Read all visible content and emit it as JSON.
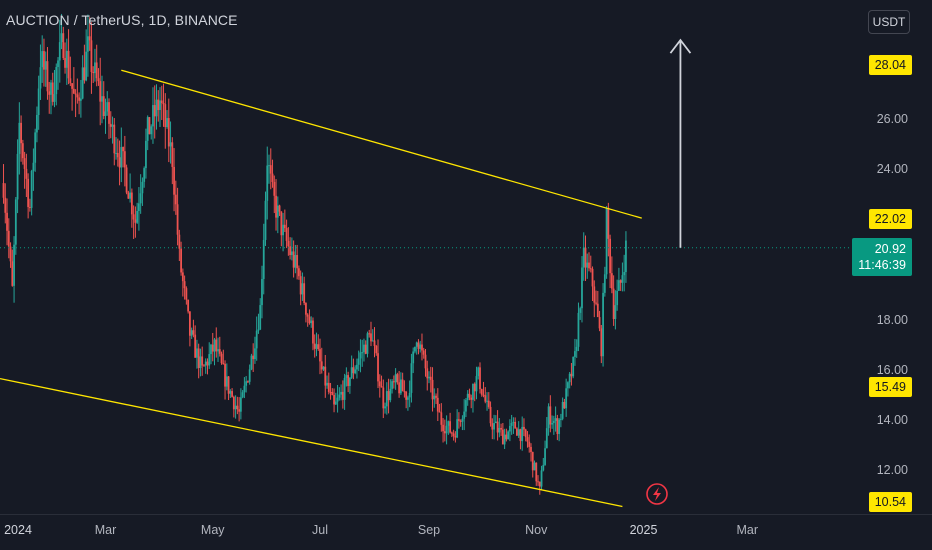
{
  "header": {
    "title": "AUCTION / TetherUS, 1D, BINANCE",
    "quote_currency": "USDT"
  },
  "price_labels": {
    "resistance_top": "28.04",
    "resistance_line": "22.02",
    "last_price": "20.92",
    "countdown": "11:46:39",
    "support_mid": "15.49",
    "support_low": "10.54"
  },
  "colors": {
    "background": "#161a25",
    "up": "#26a69a",
    "down": "#ef5350",
    "trendline": "#ffe600",
    "arrow": "#d1d4dc",
    "lightning": "#f23645",
    "last_price_bg": "#089981"
  },
  "icons": {
    "event": "lightning-icon",
    "target": "up-arrow-icon"
  },
  "chart_data": {
    "type": "candlestick",
    "title": "AUCTION / TetherUS, 1D, BINANCE",
    "y_axis": {
      "label": "USDT",
      "ticks": [
        12.0,
        14.0,
        16.0,
        18.0,
        20.0,
        22.0,
        24.0,
        26.0,
        28.0
      ],
      "tick_labels": [
        "12.00",
        "14.00",
        "16.00",
        "18.00",
        "20.00",
        "22.00",
        "24.00",
        "26.00",
        "28.00"
      ],
      "range": [
        10.3,
        30.8
      ]
    },
    "x_axis": {
      "tick_labels": [
        "2024",
        "Mar",
        "May",
        "Jul",
        "Sep",
        "Nov",
        "2025",
        "Mar"
      ],
      "range": [
        "2024-01-01",
        "2025-03-31"
      ]
    },
    "trendlines": [
      {
        "name": "upper resistance",
        "points": [
          {
            "date": "2024-03-10",
            "price": 28.0
          },
          {
            "date": "2024-12-31",
            "price": 22.1
          }
        ]
      },
      {
        "name": "lower support",
        "points": [
          {
            "date": "2024-01-01",
            "price": 15.7
          },
          {
            "date": "2024-12-20",
            "price": 10.6
          }
        ]
      }
    ],
    "key_levels": [
      28.04,
      22.02,
      20.92,
      15.49,
      10.54
    ],
    "last_price": 20.92,
    "projection": {
      "type": "arrow-up",
      "date": "2025-01-22",
      "from": 20.92,
      "to": 29.2
    },
    "series": [
      {
        "name": "AUCTION/USDT",
        "close_path": [
          {
            "date": "2024-01-03",
            "value": 23.5
          },
          {
            "date": "2024-01-08",
            "value": 19.2
          },
          {
            "date": "2024-01-12",
            "value": 25.8
          },
          {
            "date": "2024-01-18",
            "value": 22.5
          },
          {
            "date": "2024-01-24",
            "value": 28.5
          },
          {
            "date": "2024-01-30",
            "value": 27.0
          },
          {
            "date": "2024-02-06",
            "value": 29.2
          },
          {
            "date": "2024-02-13",
            "value": 26.5
          },
          {
            "date": "2024-02-20",
            "value": 28.8
          },
          {
            "date": "2024-02-27",
            "value": 27.0
          },
          {
            "date": "2024-03-05",
            "value": 25.5
          },
          {
            "date": "2024-03-12",
            "value": 24.0
          },
          {
            "date": "2024-03-18",
            "value": 22.0
          },
          {
            "date": "2024-03-25",
            "value": 25.5
          },
          {
            "date": "2024-04-01",
            "value": 26.8
          },
          {
            "date": "2024-04-08",
            "value": 24.5
          },
          {
            "date": "2024-04-12",
            "value": 20.5
          },
          {
            "date": "2024-04-18",
            "value": 17.5
          },
          {
            "date": "2024-04-25",
            "value": 16.0
          },
          {
            "date": "2024-05-02",
            "value": 17.0
          },
          {
            "date": "2024-05-09",
            "value": 15.5
          },
          {
            "date": "2024-05-16",
            "value": 14.3
          },
          {
            "date": "2024-05-23",
            "value": 16.5
          },
          {
            "date": "2024-05-28",
            "value": 18.5
          },
          {
            "date": "2024-06-01",
            "value": 24.5
          },
          {
            "date": "2024-06-04",
            "value": 23.0
          },
          {
            "date": "2024-06-10",
            "value": 21.5
          },
          {
            "date": "2024-06-18",
            "value": 20.0
          },
          {
            "date": "2024-06-25",
            "value": 18.0
          },
          {
            "date": "2024-07-02",
            "value": 16.0
          },
          {
            "date": "2024-07-09",
            "value": 14.5
          },
          {
            "date": "2024-07-16",
            "value": 15.5
          },
          {
            "date": "2024-07-23",
            "value": 16.5
          },
          {
            "date": "2024-07-30",
            "value": 17.5
          },
          {
            "date": "2024-08-06",
            "value": 14.8
          },
          {
            "date": "2024-08-13",
            "value": 15.5
          },
          {
            "date": "2024-08-20",
            "value": 15.0
          },
          {
            "date": "2024-08-25",
            "value": 17.5
          },
          {
            "date": "2024-09-01",
            "value": 15.5
          },
          {
            "date": "2024-09-08",
            "value": 14.0
          },
          {
            "date": "2024-09-15",
            "value": 13.5
          },
          {
            "date": "2024-09-22",
            "value": 14.8
          },
          {
            "date": "2024-09-29",
            "value": 15.8
          },
          {
            "date": "2024-10-06",
            "value": 14.0
          },
          {
            "date": "2024-10-13",
            "value": 13.4
          },
          {
            "date": "2024-10-20",
            "value": 13.8
          },
          {
            "date": "2024-10-27",
            "value": 13.2
          },
          {
            "date": "2024-11-03",
            "value": 11.2
          },
          {
            "date": "2024-11-08",
            "value": 14.3
          },
          {
            "date": "2024-11-13",
            "value": 13.8
          },
          {
            "date": "2024-11-18",
            "value": 15.0
          },
          {
            "date": "2024-11-23",
            "value": 16.5
          },
          {
            "date": "2024-11-28",
            "value": 20.5
          },
          {
            "date": "2024-12-03",
            "value": 19.5
          },
          {
            "date": "2024-12-08",
            "value": 17.0
          },
          {
            "date": "2024-12-11",
            "value": 22.0
          },
          {
            "date": "2024-12-15",
            "value": 18.5
          },
          {
            "date": "2024-12-19",
            "value": 19.5
          },
          {
            "date": "2024-12-22",
            "value": 20.92
          }
        ]
      }
    ]
  }
}
